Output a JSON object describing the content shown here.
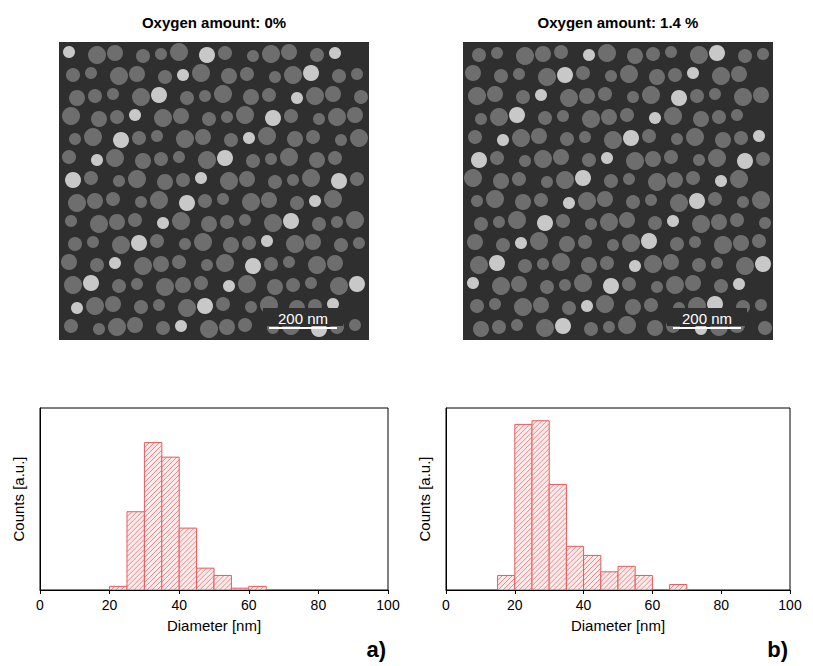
{
  "chart_data": [
    {
      "type": "histogram",
      "panel_label": "a)",
      "title": "Oxygen amount: 0%",
      "scale_bar": "200 nm",
      "xlabel": "Diameter [nm]",
      "ylabel": "Counts [a.u.]",
      "bins": [
        20,
        25,
        30,
        35,
        40,
        45,
        50,
        55,
        60,
        65
      ],
      "values": [
        2,
        43,
        81,
        73,
        34,
        12,
        8,
        1,
        2
      ],
      "color": "#e8585a",
      "xlim": [
        0,
        100
      ],
      "xticks": [
        0,
        20,
        40,
        60,
        80,
        100
      ],
      "ylim": [
        0,
        100
      ],
      "yticks": [],
      "tick_labels": "x",
      "grid": false
    },
    {
      "type": "histogram",
      "panel_label": "b)",
      "title": "Oxygen amount: 1.4 %",
      "scale_bar": "200 nm",
      "xlabel": "Diameter [nm]",
      "ylabel": "Counts [a.u.]",
      "bins": [
        15,
        20,
        25,
        30,
        35,
        40,
        45,
        50,
        55,
        60,
        65,
        70
      ],
      "values": [
        8,
        91,
        93,
        58,
        24,
        19,
        10,
        13,
        8,
        0,
        3
      ],
      "color": "#e8585a",
      "xlim": [
        0,
        100
      ],
      "xticks": [
        0,
        20,
        40,
        60,
        80,
        100
      ],
      "ylim": [
        0,
        100
      ],
      "yticks": [],
      "tick_labels": "x",
      "grid": false
    }
  ]
}
